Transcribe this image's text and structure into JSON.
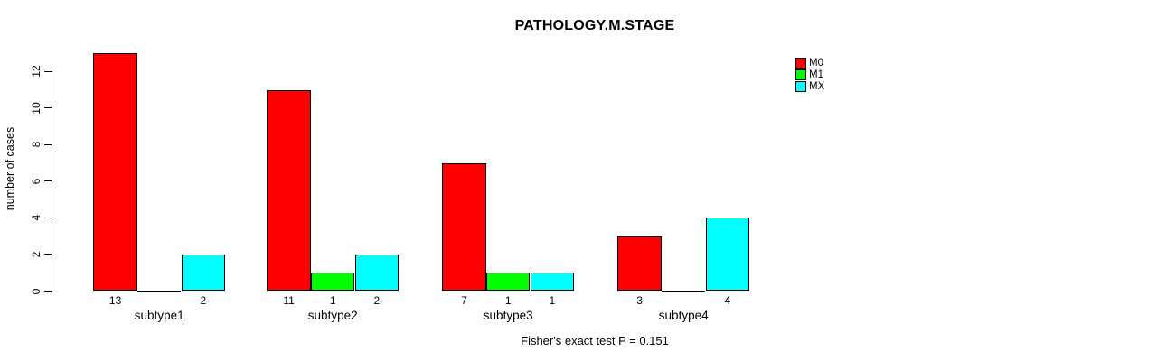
{
  "chart_data": {
    "type": "bar",
    "title": "PATHOLOGY.M.STAGE",
    "ylabel": "number of cases",
    "footnote": "Fisher's exact test P = 0.151",
    "categories": [
      "subtype1",
      "subtype2",
      "subtype3",
      "subtype4"
    ],
    "series": [
      {
        "name": "M0",
        "color": "#ff0000",
        "values": [
          13,
          11,
          7,
          3
        ]
      },
      {
        "name": "M1",
        "color": "#00ff00",
        "values": [
          0,
          1,
          1,
          0
        ]
      },
      {
        "name": "MX",
        "color": "#00ffff",
        "values": [
          2,
          2,
          1,
          4
        ]
      }
    ],
    "yticks": [
      0,
      2,
      4,
      6,
      8,
      10,
      12
    ],
    "ylim": [
      0,
      13
    ],
    "bar_value_labels_shown": true,
    "legend_position": "top-right",
    "grid": false,
    "colors": {
      "background": "#ffffff",
      "text": "#000000",
      "axis": "#000000"
    }
  }
}
